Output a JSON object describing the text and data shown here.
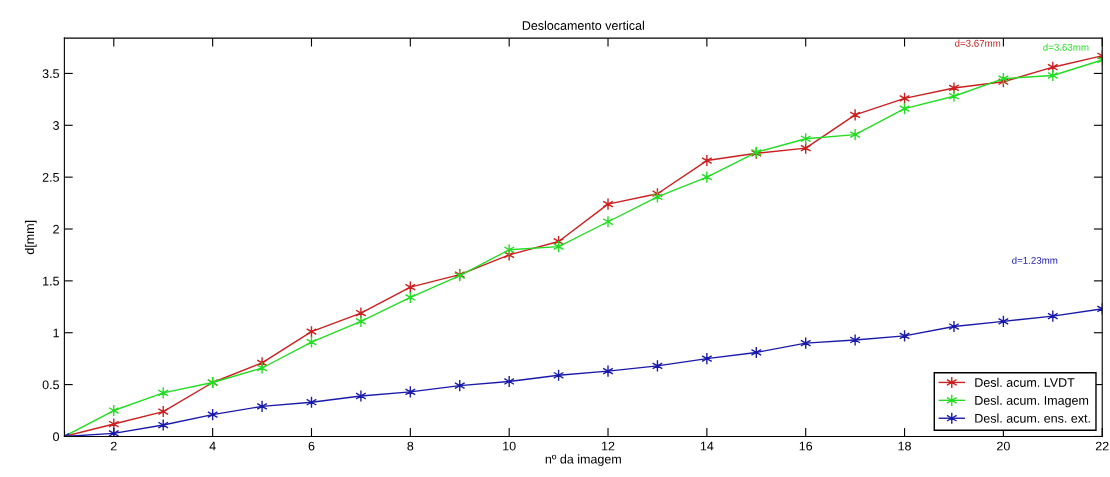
{
  "chart_data": {
    "type": "line",
    "title": "Deslocamento vertical",
    "xlabel": "nº da imagem",
    "ylabel": "d[mm]",
    "x": [
      1,
      2,
      3,
      4,
      5,
      6,
      7,
      8,
      9,
      10,
      11,
      12,
      13,
      14,
      15,
      16,
      17,
      18,
      19,
      20,
      21,
      22
    ],
    "series": [
      {
        "name": "Desl. acum. LVDT",
        "color": "#cc1f1f",
        "values": [
          0,
          0.12,
          0.24,
          0.52,
          0.71,
          1.01,
          1.19,
          1.44,
          1.56,
          1.75,
          1.88,
          2.24,
          2.34,
          2.66,
          2.73,
          2.78,
          3.1,
          3.26,
          3.36,
          3.42,
          3.56,
          3.67
        ]
      },
      {
        "name": "Desl. acum. Imagem",
        "color": "#22dd22",
        "values": [
          0,
          0.25,
          0.42,
          0.52,
          0.66,
          0.91,
          1.11,
          1.34,
          1.55,
          1.8,
          1.83,
          2.07,
          2.31,
          2.5,
          2.74,
          2.87,
          2.91,
          3.16,
          3.28,
          3.45,
          3.48,
          3.63
        ]
      },
      {
        "name": "Desl. acum. ens. ext.",
        "color": "#1a1aaa",
        "values": [
          0,
          0.03,
          0.11,
          0.21,
          0.29,
          0.33,
          0.39,
          0.43,
          0.49,
          0.53,
          0.59,
          0.63,
          0.68,
          0.75,
          0.81,
          0.9,
          0.93,
          0.97,
          1.06,
          1.11,
          1.16,
          1.23
        ]
      }
    ],
    "annotations": [
      "d=3.67mm",
      "d=3.63mm",
      "d=1.23mm"
    ],
    "xlim": [
      1,
      22
    ],
    "xticks": [
      2,
      4,
      6,
      8,
      10,
      12,
      14,
      16,
      18,
      20,
      22
    ],
    "ylim": [
      0,
      3.84
    ],
    "yticks": [
      0,
      0.5,
      1,
      1.5,
      2,
      2.5,
      3,
      3.5
    ],
    "grid": false,
    "legend": "bottom right",
    "marker": "cross",
    "line_style": "solid"
  }
}
